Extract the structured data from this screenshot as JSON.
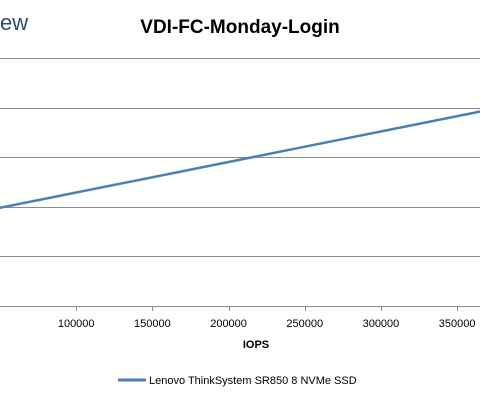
{
  "brand_text": "ew",
  "chart_data": {
    "type": "line",
    "title": "VDI-FC-Monday-Login",
    "xlabel": "IOPS",
    "ylabel": "",
    "x_ticks": [
      100000,
      150000,
      200000,
      250000,
      300000,
      350000
    ],
    "x_tick_labels": [
      "100000",
      "150000",
      "200000",
      "250000",
      "300000",
      "350000"
    ],
    "xlim": [
      50000,
      365000
    ],
    "grid": "horizontal",
    "legend_position": "bottom",
    "series": [
      {
        "name": "Lenovo ThinkSystem SR850 8 NVMe SSD",
        "color": "#4a7ebb",
        "x": [
          50000,
          365000
        ],
        "y": [
          0.99,
          1.96
        ]
      }
    ],
    "ylim": [
      0,
      2.5
    ],
    "y_gridlines": [
      0.5,
      1.0,
      1.5,
      2.0,
      2.5
    ]
  }
}
